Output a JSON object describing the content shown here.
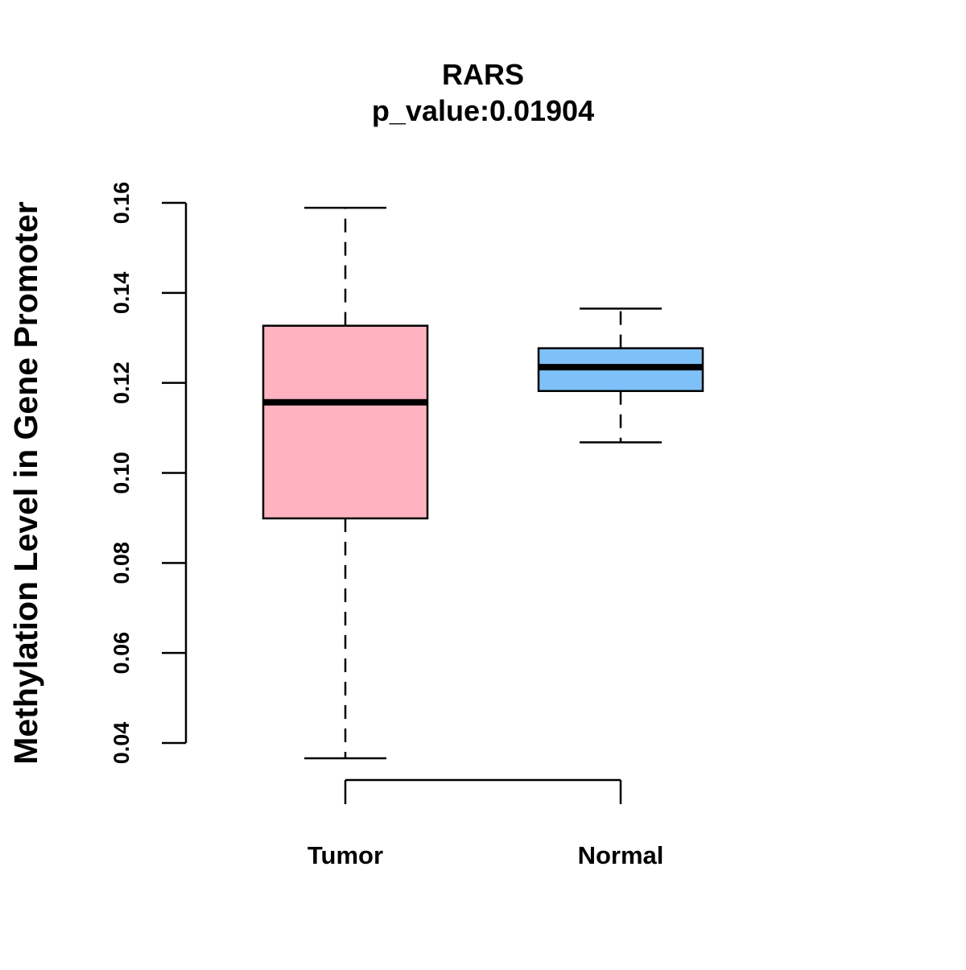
{
  "chart_data": {
    "type": "boxplot",
    "title": "RARS",
    "subtitle": "p_value:0.01904",
    "xlabel": "",
    "ylabel": "Methylation Level in Gene Promoter",
    "ylim": [
      0.04,
      0.16
    ],
    "yticks": [
      0.04,
      0.06,
      0.08,
      0.1,
      0.12,
      0.14,
      0.16
    ],
    "ytick_labels": [
      "0.04",
      "0.06",
      "0.08",
      "0.10",
      "0.12",
      "0.14",
      "0.16"
    ],
    "grid": false,
    "categories": [
      "Tumor",
      "Normal"
    ],
    "boxes": [
      {
        "name": "Tumor",
        "min": 0.0366,
        "q1": 0.0899,
        "median": 0.1157,
        "q3": 0.1327,
        "max": 0.1589,
        "color": "#FFB3C1"
      },
      {
        "name": "Normal",
        "min": 0.1068,
        "q1": 0.1182,
        "median": 0.1235,
        "q3": 0.1277,
        "max": 0.1365,
        "color": "#7EC0F8"
      }
    ]
  }
}
